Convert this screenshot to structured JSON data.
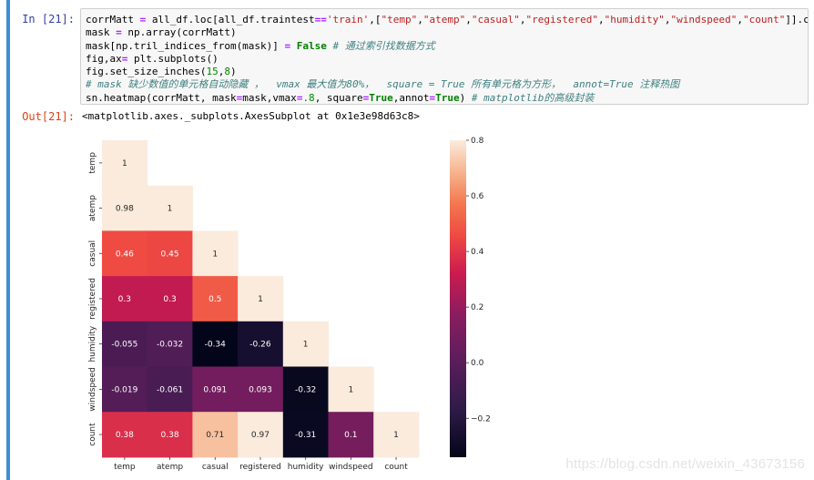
{
  "cell": {
    "in_prompt": "In  [21]:",
    "out_prompt": "Out[21]:",
    "code_lines": [
      [
        {
          "t": "corrMatt "
        },
        {
          "t": "=",
          "c": "op"
        },
        {
          "t": " all_df.loc[all_df.traintest"
        },
        {
          "t": "==",
          "c": "op"
        },
        {
          "t": "'train'",
          "c": "str"
        },
        {
          "t": ",["
        },
        {
          "t": "\"temp\"",
          "c": "str"
        },
        {
          "t": ","
        },
        {
          "t": "\"atemp\"",
          "c": "str"
        },
        {
          "t": ","
        },
        {
          "t": "\"casual\"",
          "c": "str"
        },
        {
          "t": ","
        },
        {
          "t": "\"registered\"",
          "c": "str"
        },
        {
          "t": ","
        },
        {
          "t": "\"humidity\"",
          "c": "str"
        },
        {
          "t": ","
        },
        {
          "t": "\"windspeed\"",
          "c": "str"
        },
        {
          "t": ","
        },
        {
          "t": "\"count\"",
          "c": "str"
        },
        {
          "t": "]].corr()"
        }
      ],
      [
        {
          "t": "mask "
        },
        {
          "t": "=",
          "c": "op"
        },
        {
          "t": " np.array(corrMatt)"
        }
      ],
      [
        {
          "t": "mask[np.tril_indices_from(mask)] "
        },
        {
          "t": "=",
          "c": "op"
        },
        {
          "t": " "
        },
        {
          "t": "False",
          "c": "kw"
        },
        {
          "t": " "
        },
        {
          "t": "# 通过索引找数据方式",
          "c": "comment"
        }
      ],
      [
        {
          "t": "fig,ax"
        },
        {
          "t": "=",
          "c": "op"
        },
        {
          "t": " plt.subplots()"
        }
      ],
      [
        {
          "t": "fig.set_size_inches("
        },
        {
          "t": "15",
          "c": "num"
        },
        {
          "t": ","
        },
        {
          "t": "8",
          "c": "num"
        },
        {
          "t": ")"
        }
      ],
      [
        {
          "t": "# mask 缺少数值的单元格自动隐藏 ，  vmax 最大值为80%，  square = True 所有单元格为方形，  annot=True 注释热图",
          "c": "comment"
        }
      ],
      [
        {
          "t": "sn.heatmap(corrMatt, mask"
        },
        {
          "t": "=",
          "c": "op"
        },
        {
          "t": "mask,vmax"
        },
        {
          "t": "=",
          "c": "op"
        },
        {
          "t": ".8",
          "c": "num"
        },
        {
          "t": ", square"
        },
        {
          "t": "=",
          "c": "op"
        },
        {
          "t": "True",
          "c": "kw"
        },
        {
          "t": ",annot"
        },
        {
          "t": "=",
          "c": "op"
        },
        {
          "t": "True",
          "c": "kw"
        },
        {
          "t": ") "
        },
        {
          "t": "# matplotlib的高级封装",
          "c": "comment"
        }
      ]
    ],
    "output_text": "<matplotlib.axes._subplots.AxesSubplot at 0x1e3e98d63c8>"
  },
  "chart_data": {
    "type": "heatmap",
    "labels": [
      "temp",
      "atemp",
      "casual",
      "registered",
      "humidity",
      "windspeed",
      "count"
    ],
    "values": [
      [
        1,
        null,
        null,
        null,
        null,
        null,
        null
      ],
      [
        0.98,
        1,
        null,
        null,
        null,
        null,
        null
      ],
      [
        0.46,
        0.45,
        1,
        null,
        null,
        null,
        null
      ],
      [
        0.3,
        0.3,
        0.5,
        1,
        null,
        null,
        null
      ],
      [
        -0.055,
        -0.032,
        -0.34,
        -0.26,
        1,
        null,
        null
      ],
      [
        -0.019,
        -0.061,
        0.091,
        0.093,
        -0.32,
        1,
        null
      ],
      [
        0.38,
        0.38,
        0.71,
        0.97,
        -0.31,
        0.1,
        1
      ]
    ],
    "vmin": -0.34,
    "vmax": 0.8,
    "colormap": "rocket",
    "colorbar_ticks": [
      0.8,
      0.6,
      0.4,
      0.2,
      0.0,
      -0.2
    ],
    "colorbar_tick_labels": [
      "0.8",
      "0.6",
      "0.4",
      "0.2",
      "0.0",
      "−0.2"
    ]
  },
  "watermark": "https://blog.csdn.net/weixin_43673156"
}
